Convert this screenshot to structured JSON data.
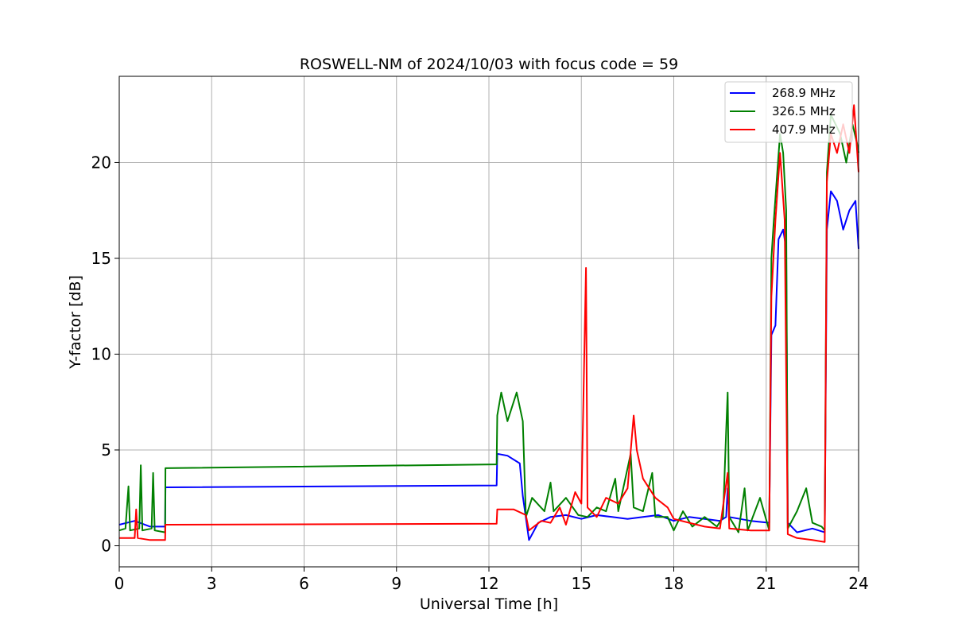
{
  "chart_data": {
    "type": "line",
    "title": "ROSWELL-NM of 2024/10/03 with focus code = 59",
    "xlabel": "Universal Time [h]",
    "ylabel": "Y-factor [dB]",
    "xlim": [
      0,
      24
    ],
    "ylim": [
      -1.1,
      24.5
    ],
    "xticks": [
      0,
      3,
      6,
      9,
      12,
      15,
      18,
      21,
      24
    ],
    "yticks": [
      0,
      5,
      10,
      15,
      20
    ],
    "grid": true,
    "legend_position": "top-right",
    "series": [
      {
        "name": "268.9 MHz",
        "color": "#0000ff",
        "points": [
          [
            0,
            1.1
          ],
          [
            0.5,
            1.3
          ],
          [
            1.0,
            1.0
          ],
          [
            1.49,
            1.0
          ],
          [
            1.5,
            3.05
          ],
          [
            12.25,
            3.15
          ],
          [
            12.27,
            4.8
          ],
          [
            12.6,
            4.7
          ],
          [
            13.0,
            4.3
          ],
          [
            13.1,
            2.6
          ],
          [
            13.3,
            0.3
          ],
          [
            13.6,
            1.2
          ],
          [
            14.0,
            1.5
          ],
          [
            14.5,
            1.6
          ],
          [
            15.0,
            1.4
          ],
          [
            15.5,
            1.6
          ],
          [
            16.0,
            1.5
          ],
          [
            16.5,
            1.4
          ],
          [
            17.0,
            1.5
          ],
          [
            17.5,
            1.6
          ],
          [
            18.0,
            1.3
          ],
          [
            18.5,
            1.5
          ],
          [
            19.0,
            1.4
          ],
          [
            19.5,
            1.3
          ],
          [
            19.7,
            1.5
          ],
          [
            19.75,
            3.0
          ],
          [
            19.8,
            1.5
          ],
          [
            20.5,
            1.3
          ],
          [
            21.1,
            1.2
          ],
          [
            21.17,
            11.0
          ],
          [
            21.3,
            11.5
          ],
          [
            21.4,
            16.0
          ],
          [
            21.55,
            16.5
          ],
          [
            21.65,
            15.5
          ],
          [
            21.7,
            1.2
          ],
          [
            22.0,
            0.7
          ],
          [
            22.5,
            0.9
          ],
          [
            22.9,
            0.7
          ],
          [
            22.97,
            16.5
          ],
          [
            23.1,
            18.5
          ],
          [
            23.3,
            18.0
          ],
          [
            23.5,
            16.5
          ],
          [
            23.7,
            17.5
          ],
          [
            23.9,
            18.0
          ],
          [
            24.0,
            15.5
          ]
        ]
      },
      {
        "name": "326.5 MHz",
        "color": "#008000",
        "points": [
          [
            0,
            0.8
          ],
          [
            0.2,
            0.9
          ],
          [
            0.3,
            3.1
          ],
          [
            0.35,
            0.8
          ],
          [
            0.65,
            0.9
          ],
          [
            0.7,
            4.2
          ],
          [
            0.75,
            0.8
          ],
          [
            1.05,
            0.9
          ],
          [
            1.1,
            3.8
          ],
          [
            1.15,
            0.8
          ],
          [
            1.49,
            0.7
          ],
          [
            1.5,
            4.05
          ],
          [
            12.25,
            4.25
          ],
          [
            12.27,
            6.8
          ],
          [
            12.4,
            8.0
          ],
          [
            12.6,
            6.5
          ],
          [
            12.9,
            8.0
          ],
          [
            13.1,
            6.5
          ],
          [
            13.2,
            1.5
          ],
          [
            13.4,
            2.5
          ],
          [
            13.8,
            1.8
          ],
          [
            14.0,
            3.3
          ],
          [
            14.1,
            1.8
          ],
          [
            14.5,
            2.5
          ],
          [
            14.9,
            1.6
          ],
          [
            15.2,
            1.5
          ],
          [
            15.5,
            2.0
          ],
          [
            15.8,
            1.8
          ],
          [
            16.1,
            3.5
          ],
          [
            16.2,
            1.8
          ],
          [
            16.6,
            4.8
          ],
          [
            16.7,
            2.0
          ],
          [
            17.0,
            1.8
          ],
          [
            17.3,
            3.8
          ],
          [
            17.4,
            1.5
          ],
          [
            17.8,
            1.5
          ],
          [
            18.0,
            0.8
          ],
          [
            18.3,
            1.8
          ],
          [
            18.6,
            1.0
          ],
          [
            19.0,
            1.5
          ],
          [
            19.4,
            1.0
          ],
          [
            19.6,
            1.5
          ],
          [
            19.7,
            6.0
          ],
          [
            19.75,
            8.0
          ],
          [
            19.8,
            1.5
          ],
          [
            20.1,
            0.7
          ],
          [
            20.3,
            3.0
          ],
          [
            20.4,
            0.8
          ],
          [
            20.8,
            2.5
          ],
          [
            21.1,
            0.8
          ],
          [
            21.17,
            15.0
          ],
          [
            21.25,
            17.0
          ],
          [
            21.45,
            21.5
          ],
          [
            21.55,
            20.5
          ],
          [
            21.65,
            17.5
          ],
          [
            21.7,
            0.9
          ],
          [
            22.0,
            1.8
          ],
          [
            22.3,
            3.0
          ],
          [
            22.5,
            1.2
          ],
          [
            22.8,
            1.0
          ],
          [
            22.9,
            0.8
          ],
          [
            22.97,
            19.5
          ],
          [
            23.1,
            22.5
          ],
          [
            23.4,
            21.5
          ],
          [
            23.6,
            20.0
          ],
          [
            23.8,
            22.0
          ],
          [
            23.95,
            21.0
          ],
          [
            24.0,
            20.5
          ]
        ]
      },
      {
        "name": "407.9 MHz",
        "color": "#ff0000",
        "points": [
          [
            0,
            0.4
          ],
          [
            0.5,
            0.4
          ],
          [
            0.55,
            1.9
          ],
          [
            0.6,
            0.4
          ],
          [
            1.0,
            0.3
          ],
          [
            1.49,
            0.3
          ],
          [
            1.5,
            1.1
          ],
          [
            12.25,
            1.15
          ],
          [
            12.27,
            1.9
          ],
          [
            12.8,
            1.9
          ],
          [
            13.2,
            1.6
          ],
          [
            13.3,
            0.8
          ],
          [
            13.7,
            1.3
          ],
          [
            14.0,
            1.2
          ],
          [
            14.3,
            2.0
          ],
          [
            14.5,
            1.1
          ],
          [
            14.8,
            2.8
          ],
          [
            15.0,
            2.2
          ],
          [
            15.15,
            14.5
          ],
          [
            15.2,
            2.0
          ],
          [
            15.5,
            1.5
          ],
          [
            15.8,
            2.5
          ],
          [
            16.2,
            2.2
          ],
          [
            16.5,
            3.0
          ],
          [
            16.7,
            6.8
          ],
          [
            16.8,
            5.0
          ],
          [
            17.0,
            3.5
          ],
          [
            17.4,
            2.5
          ],
          [
            17.8,
            2.0
          ],
          [
            18.0,
            1.4
          ],
          [
            18.5,
            1.2
          ],
          [
            19.0,
            1.0
          ],
          [
            19.5,
            0.9
          ],
          [
            19.75,
            3.8
          ],
          [
            19.8,
            0.9
          ],
          [
            20.5,
            0.8
          ],
          [
            21.1,
            0.8
          ],
          [
            21.17,
            13.0
          ],
          [
            21.3,
            17.0
          ],
          [
            21.45,
            20.5
          ],
          [
            21.6,
            17.0
          ],
          [
            21.7,
            0.6
          ],
          [
            22.0,
            0.4
          ],
          [
            22.5,
            0.3
          ],
          [
            22.9,
            0.2
          ],
          [
            22.97,
            19.0
          ],
          [
            23.1,
            21.5
          ],
          [
            23.3,
            20.5
          ],
          [
            23.5,
            22.0
          ],
          [
            23.7,
            20.5
          ],
          [
            23.85,
            23.0
          ],
          [
            24.0,
            19.5
          ]
        ]
      }
    ]
  }
}
